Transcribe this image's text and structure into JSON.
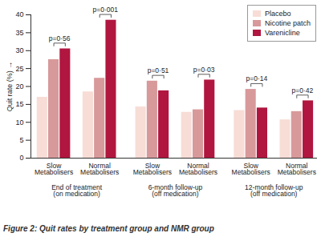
{
  "chart_data": {
    "type": "bar",
    "title": "Figure 2: Quit rates by treatment group and NMR group",
    "y_label": "Quit rate (%)",
    "groups": [
      {
        "label": "End of treatment\n(on medication)",
        "categories": [
          "Slow\nMetabolisers",
          "Normal\nMetabolisers"
        ]
      },
      {
        "label": "6-month follow-up\n(off medication)",
        "categories": [
          "Slow\nMetabolisers",
          "Normal\nMetabolisers"
        ]
      },
      {
        "label": "12-month follow-up\n(off medication)",
        "categories": [
          "Slow\nMetabolisers",
          "Normal\nMetabolisers"
        ]
      }
    ],
    "series": [
      {
        "name": "Placebo",
        "color": "#f7ddd6",
        "values": [
          17,
          18.5,
          14.3,
          12.8,
          13.3,
          10.7
        ]
      },
      {
        "name": "Nicotine patch",
        "color": "#d8999b",
        "values": [
          27.5,
          22.3,
          21.5,
          13.5,
          19.2,
          13
        ]
      },
      {
        "name": "Varenicline",
        "color": "#b0163f",
        "values": [
          30.5,
          38.5,
          18.8,
          21.8,
          14,
          16
        ]
      }
    ],
    "ylim": [
      0,
      40
    ],
    "yticks": [
      0,
      5,
      10,
      15,
      20,
      25,
      30,
      35,
      40
    ],
    "legend": "top-right",
    "annotations": [
      {
        "group": "End of treatment\n(on medication)",
        "category": "Slow\nMetabolisers",
        "text": "p=0·56"
      },
      {
        "group": "End of treatment\n(on medication)",
        "category": "Normal\nMetabolisers",
        "text": "p=0·001"
      },
      {
        "group": "6-month follow-up\n(off medication)",
        "category": "Slow\nMetabolisers",
        "text": "p=0·51"
      },
      {
        "group": "6-month follow-up\n(off medication)",
        "category": "Normal\nMetabolisers",
        "text": "p=0·03"
      },
      {
        "group": "12-month follow-up\n(off medication)",
        "category": "Slow\nMetabolisers",
        "text": "p=0·14"
      },
      {
        "group": "12-month follow-up\n(off medication)",
        "category": "Normal\nMetabolisers",
        "text": "p=0·42"
      }
    ]
  }
}
